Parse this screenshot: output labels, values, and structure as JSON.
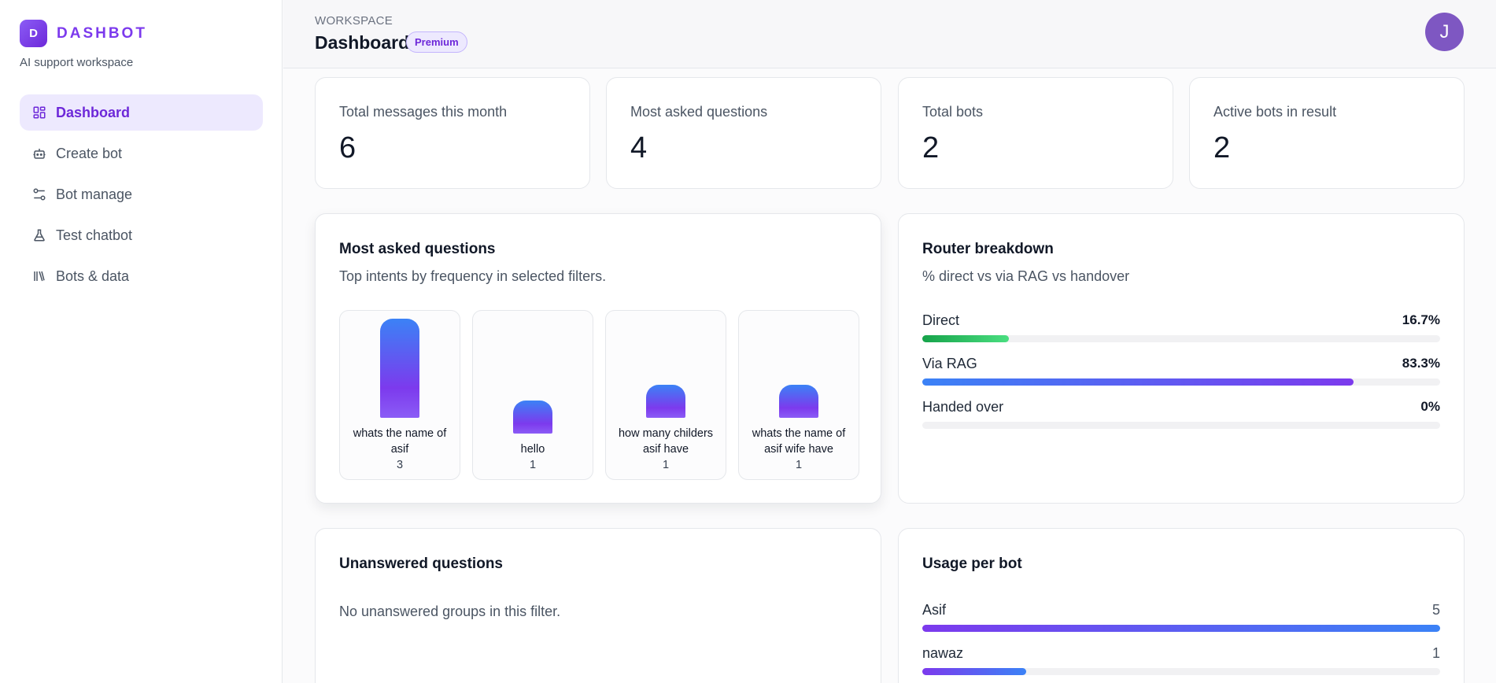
{
  "brand": {
    "logo_letter": "D",
    "name": "DASHBOT",
    "subtitle": "AI support workspace"
  },
  "nav": [
    {
      "label": "Dashboard",
      "icon": "dashboard-icon",
      "active": true
    },
    {
      "label": "Create bot",
      "icon": "bot-icon",
      "active": false
    },
    {
      "label": "Bot manage",
      "icon": "sliders-icon",
      "active": false
    },
    {
      "label": "Test chatbot",
      "icon": "flask-icon",
      "active": false
    },
    {
      "label": "Bots & data",
      "icon": "library-icon",
      "active": false
    }
  ],
  "header": {
    "section": "WORKSPACE",
    "title": "Dashboard",
    "badge": "Premium",
    "avatar_letter": "J"
  },
  "stats": [
    {
      "label": "Total messages this month",
      "value": "6"
    },
    {
      "label": "Most asked questions",
      "value": "4"
    },
    {
      "label": "Total bots",
      "value": "2"
    },
    {
      "label": "Active bots in result",
      "value": "2"
    }
  ],
  "most_asked": {
    "title": "Most asked questions",
    "subtitle": "Top intents by frequency in selected filters."
  },
  "chart_data": {
    "type": "bar",
    "categories": [
      "whats the name of asif",
      "hello",
      "how many childers asif have",
      "whats the name of asif wife have"
    ],
    "values": [
      3,
      1,
      1,
      1
    ]
  },
  "router": {
    "title": "Router breakdown",
    "subtitle": "% direct vs via RAG vs handover",
    "rows": [
      {
        "name": "Direct",
        "pct": "16.7%",
        "value": 16.7
      },
      {
        "name": "Via RAG",
        "pct": "83.3%",
        "value": 83.3
      },
      {
        "name": "Handed over",
        "pct": "0%",
        "value": 0
      }
    ]
  },
  "unanswered": {
    "title": "Unanswered questions",
    "empty": "No unanswered groups in this filter."
  },
  "usage": {
    "title": "Usage per bot",
    "rows": [
      {
        "name": "Asif",
        "count": "5",
        "value": 5
      },
      {
        "name": "nawaz",
        "count": "1",
        "value": 1
      }
    ]
  },
  "colors": {
    "accent": "#7c3aed",
    "avatar": "#7e57c2",
    "green": "#16a34a",
    "blue": "#3b82f6"
  }
}
